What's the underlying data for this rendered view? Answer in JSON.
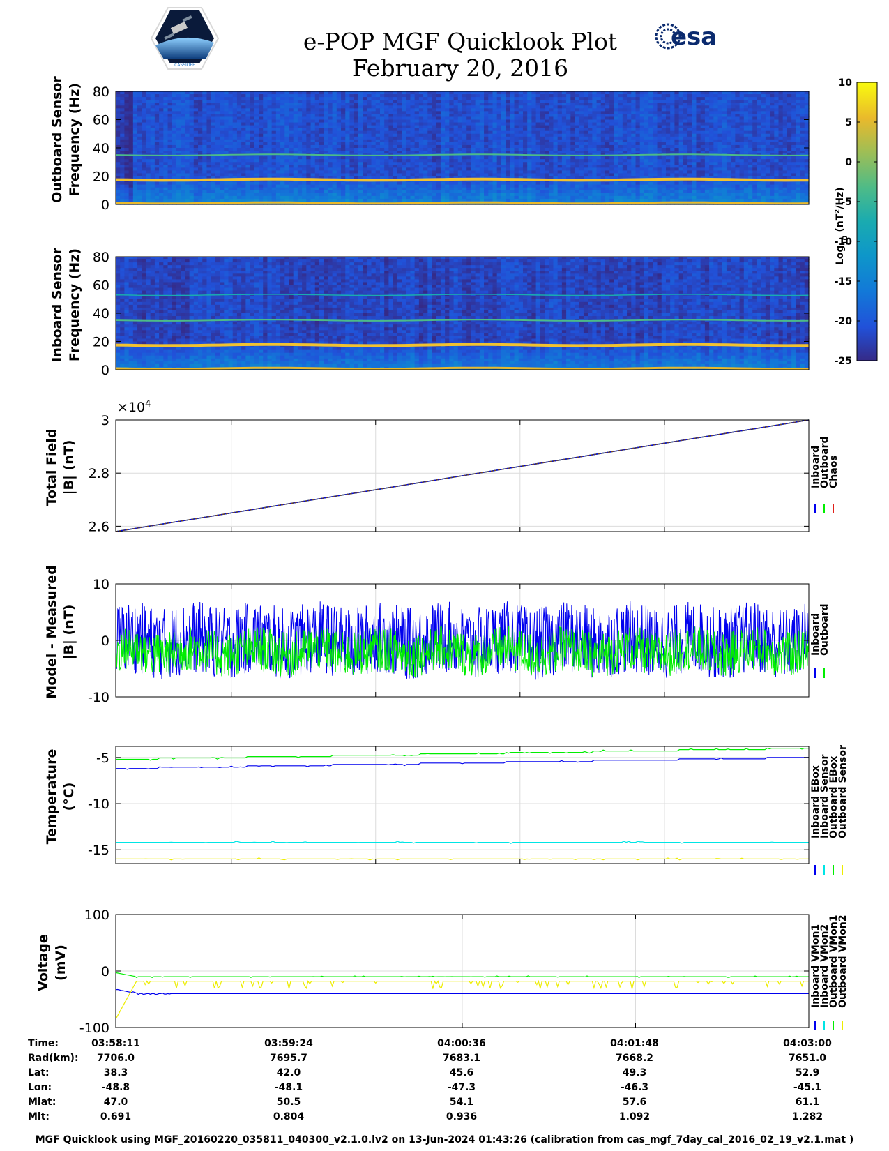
{
  "header": {
    "title": "e-POP MGF Quicklook Plot",
    "date": "February 20, 2016",
    "esa_logo_text": "esa",
    "cassiope_logo_text": "CASSIOPE"
  },
  "colors": {
    "inboard": "#0000ee",
    "outboard": "#00ee00",
    "chaos": "#e0201a",
    "cyan": "#00e5e5",
    "yellow": "#eded00",
    "grid": "#dcdcdc",
    "esa_blue": "#0a2a6e"
  },
  "colorbar": {
    "label": "Log10 (nT2/Hz)",
    "label_base": "Log",
    "label_sub": "10",
    "label_mid": " (nT",
    "label_sup": "2",
    "label_end": "/Hz)",
    "min": -25,
    "max": 10,
    "ticks": [
      "10",
      "5",
      "0",
      "-5",
      "-10",
      "-15",
      "-20",
      "-25"
    ]
  },
  "info_table": {
    "row_labels": [
      "Time:",
      "Rad(km):",
      "Lat:",
      "Lon:",
      "Mlat:",
      "Mlt:"
    ],
    "columns": [
      [
        "03:58:11",
        "7706.0",
        "38.3",
        "-48.8",
        "47.0",
        "0.691"
      ],
      [
        "03:59:24",
        "7695.7",
        "42.0",
        "-48.1",
        "50.5",
        "0.804"
      ],
      [
        "04:00:36",
        "7683.1",
        "45.6",
        "-47.3",
        "54.1",
        "0.936"
      ],
      [
        "04:01:48",
        "7668.2",
        "49.3",
        "-46.3",
        "57.6",
        "1.092"
      ],
      [
        "04:03:00",
        "7651.0",
        "52.9",
        "-45.1",
        "61.1",
        "1.282"
      ]
    ]
  },
  "footer": "MGF Quicklook using MGF_20160220_035811_040300_v2.1.0.lv2 on 13-Jun-2024 01:43:26 (calibration from cas_mgf_7day_cal_2016_02_19_v2.1.mat )",
  "chart_data": [
    {
      "type": "heatmap",
      "name": "outboard-spectrogram",
      "ylabel_lines": [
        "Outboard Sensor",
        "Frequency (Hz)"
      ],
      "ylim": [
        0,
        80
      ],
      "yticks": [
        "80",
        "60",
        "40",
        "20",
        "0"
      ],
      "x_range": [
        "03:58:11",
        "04:03:00"
      ],
      "dominant_lines_hz": [
        1,
        17.5,
        35
      ],
      "background_log10": -21
    },
    {
      "type": "heatmap",
      "name": "inboard-spectrogram",
      "ylabel_lines": [
        "Inboard Sensor",
        "Frequency (Hz)"
      ],
      "ylim": [
        0,
        80
      ],
      "yticks": [
        "80",
        "60",
        "40",
        "20",
        "0"
      ],
      "x_range": [
        "03:58:11",
        "04:03:00"
      ],
      "dominant_lines_hz": [
        1,
        17.5,
        35,
        53
      ],
      "background_log10": -22
    },
    {
      "type": "line",
      "name": "total-field",
      "ylabel_lines": [
        "Total Field",
        "|B| (nT)"
      ],
      "ylim": [
        25800,
        30000
      ],
      "yticks": [
        "3",
        "2.8",
        "2.6"
      ],
      "ytick_values": [
        30000,
        28000,
        26000
      ],
      "exponent_label": "×10",
      "exponent_sup": "4",
      "legend": [
        "Inboard",
        "Outboard",
        "Chaos"
      ],
      "series": [
        {
          "name": "Chaos",
          "x": [
            0,
            1
          ],
          "y": [
            25800,
            30000
          ]
        },
        {
          "name": "Outboard",
          "x": [
            0,
            1
          ],
          "y": [
            25800,
            30000
          ]
        },
        {
          "name": "Inboard",
          "x": [
            0,
            1
          ],
          "y": [
            25800,
            30000
          ]
        }
      ]
    },
    {
      "type": "line",
      "name": "model-minus-measured",
      "ylabel_lines": [
        "Model - Measured",
        "|B| (nT)"
      ],
      "ylim": [
        -10,
        10
      ],
      "yticks": [
        "10",
        "0",
        "-10"
      ],
      "ytick_values": [
        10,
        0,
        -10
      ],
      "legend": [
        "Inboard",
        "Outboard"
      ],
      "series": [
        {
          "name": "Inboard",
          "mean": 0,
          "spread": 8
        },
        {
          "name": "Outboard",
          "mean": -2,
          "spread": 5
        }
      ]
    },
    {
      "type": "line",
      "name": "temperature",
      "ylabel_lines": [
        "Temperature",
        "(°C)"
      ],
      "ylim": [
        -16.5,
        -3.8
      ],
      "yticks": [
        "-5",
        "-10",
        "-15"
      ],
      "ytick_values": [
        -5,
        -10,
        -15
      ],
      "legend": [
        "Inboard EBox",
        "Inboard Sensor",
        "Outboard EBox",
        "Outboard Sensor"
      ],
      "series": [
        {
          "name": "Inboard EBox",
          "start": -6.2,
          "end": -5.0
        },
        {
          "name": "Outboard EBox",
          "start": -5.2,
          "end": -4.0
        },
        {
          "name": "Inboard Sensor",
          "start": -14.2,
          "end": -14.2
        },
        {
          "name": "Outboard Sensor",
          "start": -16.0,
          "end": -16.0
        }
      ]
    },
    {
      "type": "line",
      "name": "voltage",
      "ylabel_lines": [
        "Voltage",
        "(mV)"
      ],
      "ylim": [
        -100,
        100
      ],
      "yticks": [
        "100",
        "0",
        "-100"
      ],
      "ytick_values": [
        100,
        0,
        -100
      ],
      "legend": [
        "Inboard VMon1",
        "Inboard VMon2",
        "Outboard VMon1",
        "Outboard VMon2"
      ],
      "series": [
        {
          "name": "Inboard VMon1",
          "start": -32,
          "level": -40
        },
        {
          "name": "Inboard VMon2",
          "start": -3,
          "level": -10
        },
        {
          "name": "Outboard VMon2",
          "start": -85,
          "level": -18
        }
      ]
    }
  ]
}
